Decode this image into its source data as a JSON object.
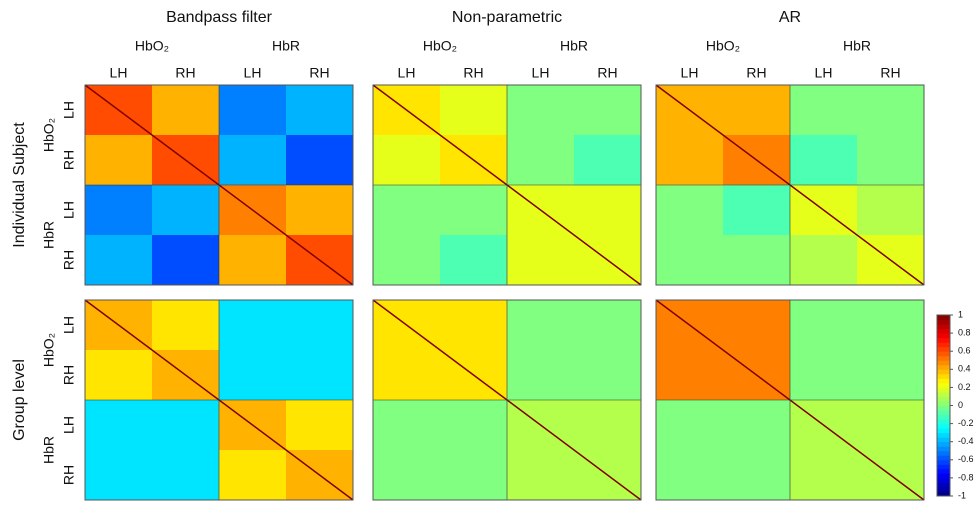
{
  "chart_data": {
    "type": "heatmap",
    "columns": [
      {
        "title": "Bandpass filter",
        "signals": [
          "HbO₂",
          "HbR"
        ],
        "hemispheres": [
          "LH",
          "RH",
          "LH",
          "RH"
        ]
      },
      {
        "title": "Non-parametric",
        "signals": [
          "HbO₂",
          "HbR"
        ],
        "hemispheres": [
          "LH",
          "RH",
          "LH",
          "RH"
        ]
      },
      {
        "title": "AR",
        "signals": [
          "HbO₂",
          "HbR"
        ],
        "hemispheres": [
          "LH",
          "RH",
          "LH",
          "RH"
        ]
      }
    ],
    "rows": [
      {
        "title": "Individual Subject",
        "signals": [
          "HbO₂",
          "HbR"
        ],
        "hemispheres": [
          "LH",
          "RH",
          "LH",
          "RH"
        ]
      },
      {
        "title": "Group level",
        "signals": [
          "HbO₂",
          "HbR"
        ],
        "hemispheres": [
          "LH",
          "RH",
          "LH",
          "RH"
        ]
      }
    ],
    "panels": [
      [
        [
          [
            0.6,
            0.4,
            -0.5,
            -0.4
          ],
          [
            0.4,
            0.6,
            -0.4,
            -0.6
          ],
          [
            -0.5,
            -0.4,
            0.5,
            0.4
          ],
          [
            -0.4,
            -0.6,
            0.4,
            0.6
          ]
        ],
        [
          [
            0.3,
            0.2,
            0,
            0
          ],
          [
            0.2,
            0.3,
            0,
            -0.1
          ],
          [
            0,
            0,
            0.2,
            0.2
          ],
          [
            0,
            -0.1,
            0.2,
            0.2
          ]
        ],
        [
          [
            0.4,
            0.4,
            0,
            0
          ],
          [
            0.4,
            0.5,
            -0.1,
            0
          ],
          [
            0,
            -0.1,
            0.2,
            0.1
          ],
          [
            0,
            0,
            0.1,
            0.2
          ]
        ]
      ],
      [
        [
          [
            0.4,
            0.3,
            -0.3,
            -0.3
          ],
          [
            0.3,
            0.4,
            -0.3,
            -0.3
          ],
          [
            -0.3,
            -0.3,
            0.4,
            0.3
          ],
          [
            -0.3,
            -0.3,
            0.3,
            0.4
          ]
        ],
        [
          [
            0.3,
            0.3,
            0,
            0
          ],
          [
            0.3,
            0.3,
            0,
            0
          ],
          [
            0,
            0,
            0.1,
            0.1
          ],
          [
            0,
            0,
            0.1,
            0.1
          ]
        ],
        [
          [
            0.5,
            0.5,
            0,
            0
          ],
          [
            0.5,
            0.5,
            0,
            0
          ],
          [
            0,
            0,
            0.1,
            0.1
          ],
          [
            0,
            0,
            0.1,
            0.1
          ]
        ]
      ]
    ],
    "colorbar": {
      "ylim": [
        -1,
        1
      ],
      "yticks": [
        1,
        0.8,
        0.6,
        0.4,
        0.2,
        0,
        -0.2,
        -0.4,
        -0.6,
        -0.8,
        -1
      ]
    }
  }
}
